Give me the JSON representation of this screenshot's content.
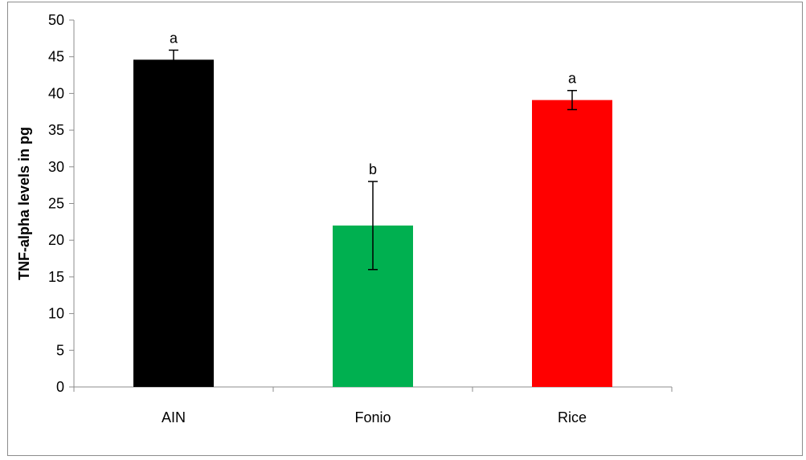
{
  "chart_data": {
    "type": "bar",
    "title": "",
    "xlabel": "",
    "ylabel": "TNF-alpha levels in pg",
    "ylim": [
      0,
      50
    ],
    "yticks": [
      0,
      5,
      10,
      15,
      20,
      25,
      30,
      35,
      40,
      45,
      50
    ],
    "grid": false,
    "legend": "none",
    "categories": [
      "AIN",
      "Fonio",
      "Rice"
    ],
    "values": [
      44.6,
      22.0,
      39.1
    ],
    "errors": [
      1.3,
      6.0,
      1.3
    ],
    "significance_labels": [
      "a",
      "b",
      "a"
    ],
    "colors": [
      "#000000",
      "#00b050",
      "#ff0000"
    ]
  }
}
